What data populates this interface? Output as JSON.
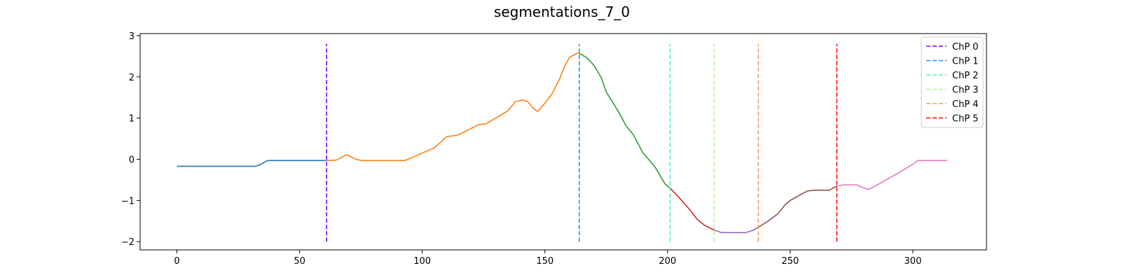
{
  "chart_data": {
    "type": "line",
    "title": "segmentations_7_0",
    "xlim": [
      -15,
      330
    ],
    "ylim": [
      -2.2,
      3.05
    ],
    "x_ticks": [
      0,
      50,
      100,
      150,
      200,
      250,
      300
    ],
    "y_ticks": [
      -2,
      -1,
      0,
      1,
      2,
      3
    ],
    "grid": false,
    "legend_position": "top-right",
    "series": [
      {
        "color": "#1f77b4",
        "points": [
          [
            0,
            -0.17
          ],
          [
            10,
            -0.17
          ],
          [
            20,
            -0.17
          ],
          [
            32,
            -0.17
          ],
          [
            34,
            -0.13
          ],
          [
            36,
            -0.06
          ],
          [
            37,
            -0.03
          ],
          [
            40,
            -0.03
          ],
          [
            50,
            -0.03
          ],
          [
            61,
            -0.03
          ]
        ]
      },
      {
        "color": "#ff7f0e",
        "points": [
          [
            61,
            -0.03
          ],
          [
            65,
            -0.02
          ],
          [
            67,
            0.04
          ],
          [
            69,
            0.11
          ],
          [
            71,
            0.06
          ],
          [
            73,
            0.0
          ],
          [
            75,
            -0.03
          ],
          [
            85,
            -0.03
          ],
          [
            93,
            -0.03
          ],
          [
            95,
            0.02
          ],
          [
            100,
            0.15
          ],
          [
            105,
            0.28
          ],
          [
            110,
            0.55
          ],
          [
            113,
            0.57
          ],
          [
            115,
            0.6
          ],
          [
            120,
            0.75
          ],
          [
            123,
            0.84
          ],
          [
            126,
            0.86
          ],
          [
            130,
            1.0
          ],
          [
            135,
            1.18
          ],
          [
            138,
            1.4
          ],
          [
            141,
            1.44
          ],
          [
            143,
            1.4
          ],
          [
            145,
            1.25
          ],
          [
            147,
            1.16
          ],
          [
            150,
            1.36
          ],
          [
            153,
            1.6
          ],
          [
            156,
            1.95
          ],
          [
            158,
            2.25
          ],
          [
            160,
            2.47
          ],
          [
            163,
            2.57
          ],
          [
            164,
            2.57
          ]
        ]
      },
      {
        "color": "#2ca02c",
        "points": [
          [
            164,
            2.57
          ],
          [
            167,
            2.47
          ],
          [
            170,
            2.28
          ],
          [
            173,
            1.98
          ],
          [
            175,
            1.63
          ],
          [
            178,
            1.35
          ],
          [
            181,
            1.05
          ],
          [
            183,
            0.82
          ],
          [
            186,
            0.6
          ],
          [
            188,
            0.38
          ],
          [
            190,
            0.15
          ],
          [
            193,
            -0.05
          ],
          [
            195,
            -0.2
          ],
          [
            197,
            -0.4
          ],
          [
            199,
            -0.6
          ],
          [
            201,
            -0.7
          ]
        ]
      },
      {
        "color": "#d62728",
        "points": [
          [
            201,
            -0.7
          ],
          [
            205,
            -0.95
          ],
          [
            209,
            -1.22
          ],
          [
            212,
            -1.45
          ],
          [
            215,
            -1.6
          ],
          [
            219,
            -1.72
          ]
        ]
      },
      {
        "color": "#9467bd",
        "points": [
          [
            219,
            -1.72
          ],
          [
            222,
            -1.78
          ],
          [
            227,
            -1.78
          ],
          [
            232,
            -1.78
          ],
          [
            235,
            -1.72
          ],
          [
            237,
            -1.65
          ]
        ]
      },
      {
        "color": "#8c564b",
        "points": [
          [
            237,
            -1.65
          ],
          [
            241,
            -1.5
          ],
          [
            245,
            -1.32
          ],
          [
            248,
            -1.1
          ],
          [
            250,
            -1.0
          ],
          [
            253,
            -0.9
          ],
          [
            257,
            -0.77
          ],
          [
            260,
            -0.75
          ],
          [
            266,
            -0.75
          ],
          [
            269,
            -0.65
          ]
        ]
      },
      {
        "color": "#e377c2",
        "points": [
          [
            269,
            -0.65
          ],
          [
            272,
            -0.62
          ],
          [
            277,
            -0.62
          ],
          [
            280,
            -0.7
          ],
          [
            282,
            -0.73
          ],
          [
            285,
            -0.64
          ],
          [
            290,
            -0.47
          ],
          [
            295,
            -0.3
          ],
          [
            300,
            -0.12
          ],
          [
            302,
            -0.03
          ],
          [
            305,
            -0.03
          ],
          [
            314,
            -0.03
          ]
        ]
      }
    ],
    "changepoints": [
      {
        "label": "ChP 0",
        "x": 61,
        "color": "#8000ff"
      },
      {
        "label": "ChP 1",
        "x": 164,
        "color": "#1996f3"
      },
      {
        "label": "ChP 2",
        "x": 201,
        "color": "#4cf2ce"
      },
      {
        "label": "ChP 3",
        "x": 219,
        "color": "#b2f396"
      },
      {
        "label": "ChP 4",
        "x": 237,
        "color": "#ff964f"
      },
      {
        "label": "ChP 5",
        "x": 269,
        "color": "#ff0000"
      }
    ],
    "changepoint_span": [
      -2.0,
      2.8
    ]
  }
}
